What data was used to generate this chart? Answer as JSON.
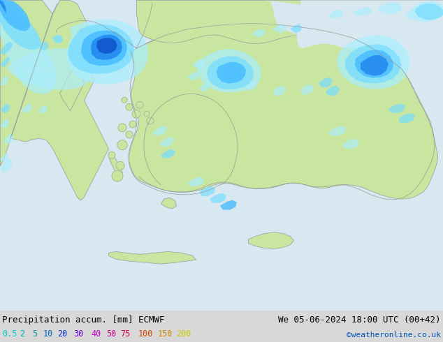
{
  "title_left": "Precipitation accum. [mm] ECMWF",
  "title_right": "We 05-06-2024 18:00 UTC (00+42)",
  "credit": "©weatheronline.co.uk",
  "legend_values": [
    "0.5",
    "2",
    "5",
    "10",
    "20",
    "30",
    "40",
    "50",
    "75",
    "100",
    "150",
    "200"
  ],
  "legend_label_colors": [
    "#00cccc",
    "#00aaaa",
    "#009999",
    "#0066bb",
    "#0033cc",
    "#6600cc",
    "#cc00cc",
    "#cc0088",
    "#cc0044",
    "#cc4400",
    "#cc8800",
    "#cccc00"
  ],
  "bottom_bar_color": "#d8d8d8",
  "title_fontsize": 9,
  "legend_fontsize": 8.5,
  "credit_fontsize": 8,
  "fig_width": 6.34,
  "fig_height": 4.9,
  "dpi": 100,
  "sea_color": "#d8e8f0",
  "land_color": "#c8e6a0",
  "land_dark": "#b0d080",
  "precip_0_5": "#aaeeff",
  "precip_2": "#77ddff",
  "precip_5": "#44bbff",
  "precip_10": "#2288ee",
  "precip_20": "#1155cc",
  "map_border_color": "#aaaaaa",
  "coast_color": "#999999"
}
